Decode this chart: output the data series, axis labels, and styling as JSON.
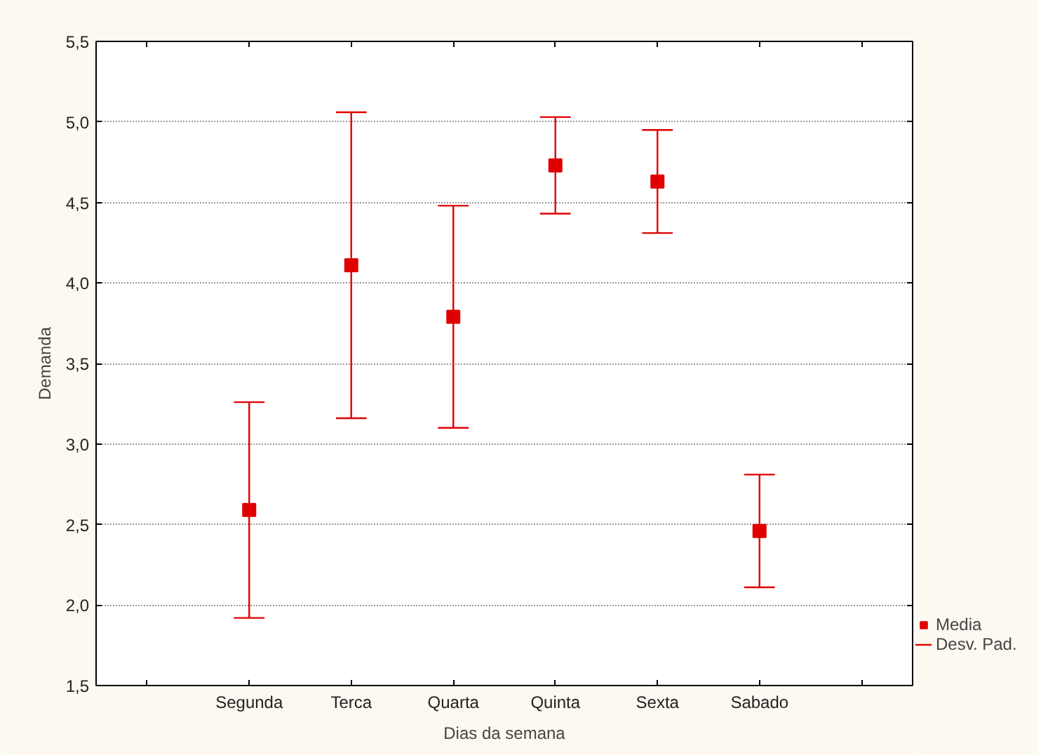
{
  "chart_data": {
    "type": "scatter",
    "xlabel": "Dias da semana",
    "ylabel": "Demanda",
    "categories": [
      null,
      "Segunda",
      "Terca",
      "Quarta",
      "Quinta",
      "Sexta",
      "Sabado",
      null
    ],
    "series": [
      {
        "name": "Media",
        "color": "#e00000",
        "values": [
          null,
          2.59,
          4.11,
          3.79,
          4.73,
          4.63,
          2.46,
          null
        ],
        "errors": [
          null,
          0.67,
          0.95,
          0.69,
          0.3,
          0.32,
          0.35,
          null
        ]
      }
    ],
    "ylim": [
      1.5,
      5.5
    ],
    "yticks": [
      {
        "value": 1.5,
        "label": "1,5"
      },
      {
        "value": 2.0,
        "label": "2,0"
      },
      {
        "value": 2.5,
        "label": "2,5"
      },
      {
        "value": 3.0,
        "label": "3,0"
      },
      {
        "value": 3.5,
        "label": "3,5"
      },
      {
        "value": 4.0,
        "label": "4,0"
      },
      {
        "value": 4.5,
        "label": "4,5"
      },
      {
        "value": 5.0,
        "label": "5,0"
      },
      {
        "value": 5.5,
        "label": "5,5"
      }
    ],
    "grid": "y",
    "legend": "bottom right",
    "marker": "square",
    "annotations": [
      "Desv. Pad."
    ]
  }
}
